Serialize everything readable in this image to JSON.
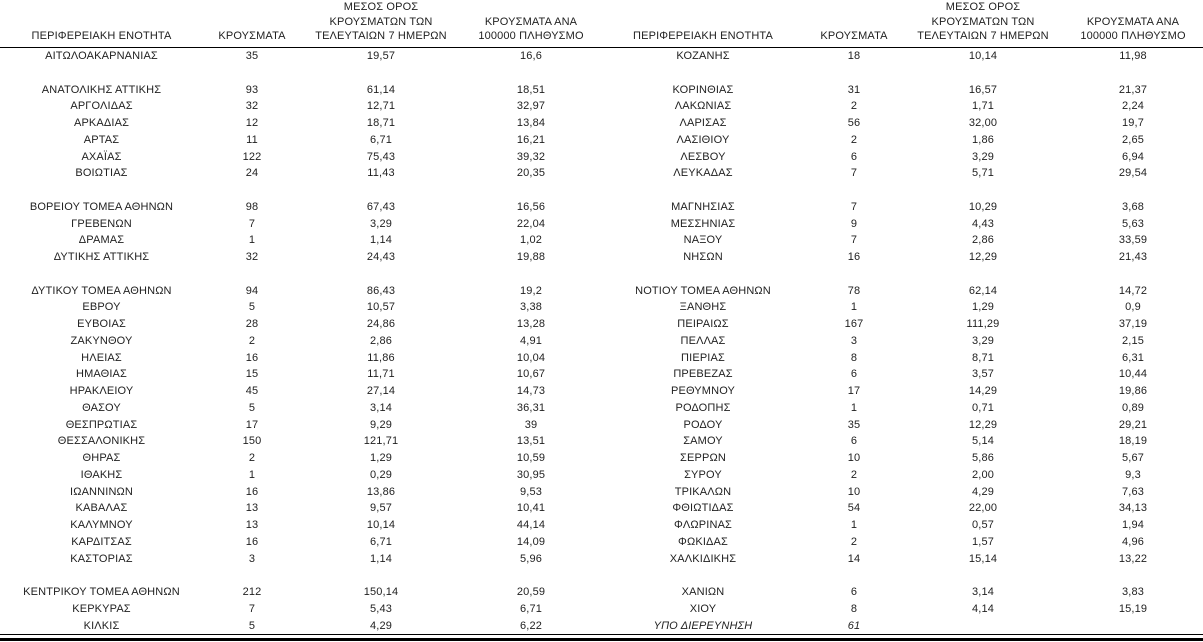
{
  "colors": {
    "background": "#ffffff",
    "text": "#1f1f1f",
    "rule": "#000000"
  },
  "chart_data": {
    "type": "table",
    "description_layout": "two side-by-side table panels sharing identical column headers; decimal comma number formatting; blank spacer rows between groups",
    "column_headers": {
      "region": "ΠΕΡΙΦΕΡΕΙΑΚΗ ΕΝΟΤΗΤΑ",
      "cases": "ΚΡΟΥΣΜΑΤΑ",
      "avg7_lines": [
        "ΜΕΣΟΣ ΟΡΟΣ",
        "ΚΡΟΥΣΜΑΤΩΝ ΤΩΝ",
        "ΤΕΛΕΥΤΑΙΩΝ 7 ΗΜΕΡΩΝ"
      ],
      "per100k_lines": [
        "ΚΡΟΥΣΜΑΤΑ ΑΝΑ",
        "100000 ΠΛΗΘΥΣΜΟ"
      ]
    },
    "left_rows": [
      {
        "region": "ΑΙΤΩΛΟΑΚΑΡΝΑΝΙΑΣ",
        "cases": "35",
        "avg7": "19,57",
        "per100k": "16,6"
      },
      {
        "blank": true
      },
      {
        "region": "ΑΝΑΤΟΛΙΚΗΣ ΑΤΤΙΚΗΣ",
        "cases": "93",
        "avg7": "61,14",
        "per100k": "18,51"
      },
      {
        "region": "ΑΡΓΟΛΙΔΑΣ",
        "cases": "32",
        "avg7": "12,71",
        "per100k": "32,97"
      },
      {
        "region": "ΑΡΚΑΔΙΑΣ",
        "cases": "12",
        "avg7": "18,71",
        "per100k": "13,84"
      },
      {
        "region": "ΑΡΤΑΣ",
        "cases": "11",
        "avg7": "6,71",
        "per100k": "16,21"
      },
      {
        "region": "ΑΧΑΪΑΣ",
        "cases": "122",
        "avg7": "75,43",
        "per100k": "39,32"
      },
      {
        "region": "ΒΟΙΩΤΙΑΣ",
        "cases": "24",
        "avg7": "11,43",
        "per100k": "20,35"
      },
      {
        "blank": true
      },
      {
        "region": "ΒΟΡΕΙΟΥ ΤΟΜΕΑ ΑΘΗΝΩΝ",
        "cases": "98",
        "avg7": "67,43",
        "per100k": "16,56"
      },
      {
        "region": "ΓΡΕΒΕΝΩΝ",
        "cases": "7",
        "avg7": "3,29",
        "per100k": "22,04"
      },
      {
        "region": "ΔΡΑΜΑΣ",
        "cases": "1",
        "avg7": "1,14",
        "per100k": "1,02"
      },
      {
        "region": "ΔΥΤΙΚΗΣ ΑΤΤΙΚΗΣ",
        "cases": "32",
        "avg7": "24,43",
        "per100k": "19,88"
      },
      {
        "blank": true
      },
      {
        "region": "ΔΥΤΙΚΟΥ ΤΟΜΕΑ ΑΘΗΝΩΝ",
        "cases": "94",
        "avg7": "86,43",
        "per100k": "19,2"
      },
      {
        "region": "ΕΒΡΟΥ",
        "cases": "5",
        "avg7": "10,57",
        "per100k": "3,38"
      },
      {
        "region": "ΕΥΒΟΙΑΣ",
        "cases": "28",
        "avg7": "24,86",
        "per100k": "13,28"
      },
      {
        "region": "ΖΑΚΥΝΘΟΥ",
        "cases": "2",
        "avg7": "2,86",
        "per100k": "4,91"
      },
      {
        "region": "ΗΛΕΙΑΣ",
        "cases": "16",
        "avg7": "11,86",
        "per100k": "10,04"
      },
      {
        "region": "ΗΜΑΘΙΑΣ",
        "cases": "15",
        "avg7": "11,71",
        "per100k": "10,67"
      },
      {
        "region": "ΗΡΑΚΛΕΙΟΥ",
        "cases": "45",
        "avg7": "27,14",
        "per100k": "14,73"
      },
      {
        "region": "ΘΑΣΟΥ",
        "cases": "5",
        "avg7": "3,14",
        "per100k": "36,31"
      },
      {
        "region": "ΘΕΣΠΡΩΤΙΑΣ",
        "cases": "17",
        "avg7": "9,29",
        "per100k": "39"
      },
      {
        "region": "ΘΕΣΣΑΛΟΝΙΚΗΣ",
        "cases": "150",
        "avg7": "121,71",
        "per100k": "13,51"
      },
      {
        "region": "ΘΗΡΑΣ",
        "cases": "2",
        "avg7": "1,29",
        "per100k": "10,59"
      },
      {
        "region": "ΙΘΑΚΗΣ",
        "cases": "1",
        "avg7": "0,29",
        "per100k": "30,95"
      },
      {
        "region": "ΙΩΑΝΝΙΝΩΝ",
        "cases": "16",
        "avg7": "13,86",
        "per100k": "9,53"
      },
      {
        "region": "ΚΑΒΑΛΑΣ",
        "cases": "13",
        "avg7": "9,57",
        "per100k": "10,41"
      },
      {
        "region": "ΚΑΛΥΜΝΟΥ",
        "cases": "13",
        "avg7": "10,14",
        "per100k": "44,14"
      },
      {
        "region": "ΚΑΡΔΙΤΣΑΣ",
        "cases": "16",
        "avg7": "6,71",
        "per100k": "14,09"
      },
      {
        "region": "ΚΑΣΤΟΡΙΑΣ",
        "cases": "3",
        "avg7": "1,14",
        "per100k": "5,96"
      },
      {
        "blank": true
      },
      {
        "region": "ΚΕΝΤΡΙΚΟΥ ΤΟΜΕΑ ΑΘΗΝΩΝ",
        "cases": "212",
        "avg7": "150,14",
        "per100k": "20,59"
      },
      {
        "region": "ΚΕΡΚΥΡΑΣ",
        "cases": "7",
        "avg7": "5,43",
        "per100k": "6,71"
      },
      {
        "region": "ΚΙΛΚΙΣ",
        "cases": "5",
        "avg7": "4,29",
        "per100k": "6,22"
      }
    ],
    "right_rows": [
      {
        "region": "ΚΟΖΑΝΗΣ",
        "cases": "18",
        "avg7": "10,14",
        "per100k": "11,98"
      },
      {
        "blank": true
      },
      {
        "region": "ΚΟΡΙΝΘΙΑΣ",
        "cases": "31",
        "avg7": "16,57",
        "per100k": "21,37"
      },
      {
        "region": "ΛΑΚΩΝΙΑΣ",
        "cases": "2",
        "avg7": "1,71",
        "per100k": "2,24"
      },
      {
        "region": "ΛΑΡΙΣΑΣ",
        "cases": "56",
        "avg7": "32,00",
        "per100k": "19,7"
      },
      {
        "region": "ΛΑΣΙΘΙΟΥ",
        "cases": "2",
        "avg7": "1,86",
        "per100k": "2,65"
      },
      {
        "region": "ΛΕΣΒΟΥ",
        "cases": "6",
        "avg7": "3,29",
        "per100k": "6,94"
      },
      {
        "region": "ΛΕΥΚΑΔΑΣ",
        "cases": "7",
        "avg7": "5,71",
        "per100k": "29,54"
      },
      {
        "blank": true
      },
      {
        "region": "ΜΑΓΝΗΣΙΑΣ",
        "cases": "7",
        "avg7": "10,29",
        "per100k": "3,68"
      },
      {
        "region": "ΜΕΣΣΗΝΙΑΣ",
        "cases": "9",
        "avg7": "4,43",
        "per100k": "5,63"
      },
      {
        "region": "ΝΑΞΟΥ",
        "cases": "7",
        "avg7": "2,86",
        "per100k": "33,59"
      },
      {
        "region": "ΝΗΣΩΝ",
        "cases": "16",
        "avg7": "12,29",
        "per100k": "21,43"
      },
      {
        "blank": true
      },
      {
        "region": "ΝΟΤΙΟΥ ΤΟΜΕΑ ΑΘΗΝΩΝ",
        "cases": "78",
        "avg7": "62,14",
        "per100k": "14,72"
      },
      {
        "region": "ΞΑΝΘΗΣ",
        "cases": "1",
        "avg7": "1,29",
        "per100k": "0,9"
      },
      {
        "region": "ΠΕΙΡΑΙΩΣ",
        "cases": "167",
        "avg7": "111,29",
        "per100k": "37,19"
      },
      {
        "region": "ΠΕΛΛΑΣ",
        "cases": "3",
        "avg7": "3,29",
        "per100k": "2,15"
      },
      {
        "region": "ΠΙΕΡΙΑΣ",
        "cases": "8",
        "avg7": "8,71",
        "per100k": "6,31"
      },
      {
        "region": "ΠΡΕΒΕΖΑΣ",
        "cases": "6",
        "avg7": "3,57",
        "per100k": "10,44"
      },
      {
        "region": "ΡΕΘΥΜΝΟΥ",
        "cases": "17",
        "avg7": "14,29",
        "per100k": "19,86"
      },
      {
        "region": "ΡΟΔΟΠΗΣ",
        "cases": "1",
        "avg7": "0,71",
        "per100k": "0,89"
      },
      {
        "region": "ΡΟΔΟΥ",
        "cases": "35",
        "avg7": "12,29",
        "per100k": "29,21"
      },
      {
        "region": "ΣΑΜΟΥ",
        "cases": "6",
        "avg7": "5,14",
        "per100k": "18,19"
      },
      {
        "region": "ΣΕΡΡΩΝ",
        "cases": "10",
        "avg7": "5,86",
        "per100k": "5,67"
      },
      {
        "region": "ΣΥΡΟΥ",
        "cases": "2",
        "avg7": "2,00",
        "per100k": "9,3"
      },
      {
        "region": "ΤΡΙΚΑΛΩΝ",
        "cases": "10",
        "avg7": "4,29",
        "per100k": "7,63"
      },
      {
        "region": "ΦΘΙΩΤΙΔΑΣ",
        "cases": "54",
        "avg7": "22,00",
        "per100k": "34,13"
      },
      {
        "region": "ΦΛΩΡΙΝΑΣ",
        "cases": "1",
        "avg7": "0,57",
        "per100k": "1,94"
      },
      {
        "region": "ΦΩΚΙΔΑΣ",
        "cases": "2",
        "avg7": "1,57",
        "per100k": "4,96"
      },
      {
        "region": "ΧΑΛΚΙΔΙΚΗΣ",
        "cases": "14",
        "avg7": "15,14",
        "per100k": "13,22"
      },
      {
        "blank": true
      },
      {
        "region": "ΧΑΝΙΩΝ",
        "cases": "6",
        "avg7": "3,14",
        "per100k": "3,83"
      },
      {
        "region": "ΧΙΟΥ",
        "cases": "8",
        "avg7": "4,14",
        "per100k": "15,19"
      },
      {
        "region": "ΥΠΟ ΔΙΕΡΕΥΝΗΣΗ",
        "cases": "61",
        "avg7": "",
        "per100k": "",
        "italic": true
      }
    ]
  }
}
